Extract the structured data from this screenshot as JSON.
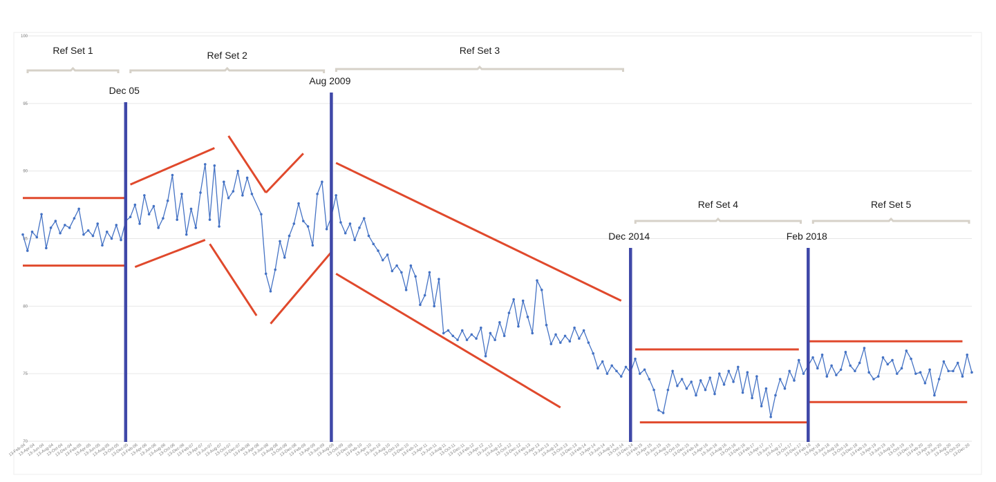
{
  "chart_data": {
    "type": "line",
    "title": "",
    "xlabel": "",
    "ylabel": "",
    "ylim": [
      70,
      100
    ],
    "yticks": [
      "70",
      "75",
      "80",
      "85",
      "90",
      "95",
      "100"
    ],
    "grid": "horizontal",
    "colors": {
      "series": "#4472c4",
      "regime_lines": "#3f48a8",
      "trend_lines": "#e0492c",
      "brackets": "#d6d1c8",
      "grid": "#e6e6e6"
    },
    "x_tick_labels": [
      "13-Feb-04",
      "13-Apr-04",
      "13-Jun-04",
      "13-Aug-04",
      "13-Oct-04",
      "13-Dec-04",
      "13-Feb-05",
      "13-Apr-05",
      "13-Jun-05",
      "13-Aug-05",
      "13-Oct-05",
      "13-Dec-05",
      "13-Feb-06",
      "13-Apr-06",
      "13-Jun-06",
      "13-Aug-06",
      "13-Oct-06",
      "13-Dec-06",
      "13-Feb-07",
      "13-Apr-07",
      "13-Jun-07",
      "13-Aug-07",
      "13-Oct-07",
      "13-Dec-07",
      "13-Feb-08",
      "13-Apr-08",
      "13-Jun-08",
      "13-Aug-08",
      "13-Oct-08",
      "13-Dec-08",
      "13-Feb-09",
      "13-Apr-09",
      "13-Jun-09",
      "13-Aug-09",
      "13-Oct-09",
      "13-Dec-09",
      "13-Feb-10",
      "13-Apr-10",
      "13-Jun-10",
      "13-Aug-10",
      "13-Oct-10",
      "13-Dec-10",
      "13-Feb-11",
      "13-Apr-11",
      "13-Jun-11",
      "13-Aug-11",
      "13-Oct-11",
      "13-Dec-11",
      "13-Feb-12",
      "13-Apr-12",
      "13-Jun-12",
      "13-Aug-12",
      "13-Oct-12",
      "13-Dec-12",
      "13-Feb-13",
      "13-Apr-13",
      "13-Jun-13",
      "13-Aug-13",
      "13-Oct-13",
      "13-Dec-13",
      "13-Feb-14",
      "13-Apr-14",
      "13-Jun-14",
      "13-Aug-14",
      "13-Oct-14",
      "13-Dec-14",
      "13-Feb-15",
      "13-Apr-15",
      "13-Jun-15",
      "13-Aug-15",
      "13-Oct-15",
      "13-Dec-15",
      "13-Feb-16",
      "13-Apr-16",
      "13-Jun-16",
      "13-Aug-16",
      "13-Oct-16",
      "13-Dec-16",
      "13-Feb-17",
      "13-Apr-17",
      "13-Jun-17",
      "13-Aug-17",
      "13-Oct-17",
      "13-Dec-17",
      "13-Feb-18",
      "13-Apr-18",
      "13-Jun-18",
      "13-Aug-18",
      "13-Oct-18",
      "13-Dec-18",
      "13-Feb-19",
      "13-Apr-19",
      "13-Jun-19",
      "13-Aug-19",
      "13-Oct-19",
      "13-Dec-19",
      "13-Feb-20",
      "13-Apr-20",
      "13-Jun-20",
      "13-Aug-20",
      "13-Oct-20",
      "13-Dec-20"
    ],
    "series": [
      {
        "values": [
          [
            "2004-02",
            85.3
          ],
          [
            "2004-03",
            84.1
          ],
          [
            "2004-04",
            85.5
          ],
          [
            "2004-05",
            85.1
          ],
          [
            "2004-06",
            86.8
          ],
          [
            "2004-07",
            84.3
          ],
          [
            "2004-08",
            85.8
          ],
          [
            "2004-09",
            86.3
          ],
          [
            "2004-10",
            85.4
          ],
          [
            "2004-11",
            86.0
          ],
          [
            "2004-12",
            85.8
          ],
          [
            "2005-01",
            86.5
          ],
          [
            "2005-02",
            87.2
          ],
          [
            "2005-03",
            85.3
          ],
          [
            "2005-04",
            85.6
          ],
          [
            "2005-05",
            85.2
          ],
          [
            "2005-06",
            86.1
          ],
          [
            "2005-07",
            84.5
          ],
          [
            "2005-08",
            85.5
          ],
          [
            "2005-09",
            85.0
          ],
          [
            "2005-10",
            86.0
          ],
          [
            "2005-11",
            84.9
          ],
          [
            "2005-12",
            86.3
          ],
          [
            "2006-01",
            86.6
          ],
          [
            "2006-02",
            87.5
          ],
          [
            "2006-03",
            86.1
          ],
          [
            "2006-04",
            88.2
          ],
          [
            "2006-05",
            86.8
          ],
          [
            "2006-06",
            87.4
          ],
          [
            "2006-07",
            85.8
          ],
          [
            "2006-08",
            86.5
          ],
          [
            "2006-09",
            87.8
          ],
          [
            "2006-10",
            89.7
          ],
          [
            "2006-11",
            86.4
          ],
          [
            "2006-12",
            88.3
          ],
          [
            "2007-01",
            85.3
          ],
          [
            "2007-02",
            87.2
          ],
          [
            "2007-03",
            85.8
          ],
          [
            "2007-04",
            88.4
          ],
          [
            "2007-05",
            90.5
          ],
          [
            "2007-06",
            86.4
          ],
          [
            "2007-07",
            90.4
          ],
          [
            "2007-08",
            85.9
          ],
          [
            "2007-09",
            89.2
          ],
          [
            "2007-10",
            88.0
          ],
          [
            "2007-11",
            88.5
          ],
          [
            "2007-12",
            90.0
          ],
          [
            "2008-01",
            88.2
          ],
          [
            "2008-02",
            89.5
          ],
          [
            "2008-03",
            88.3
          ],
          [
            "2008-05",
            86.8
          ],
          [
            "2008-06",
            82.4
          ],
          [
            "2008-07",
            81.1
          ],
          [
            "2008-08",
            82.7
          ],
          [
            "2008-09",
            84.8
          ],
          [
            "2008-10",
            83.6
          ],
          [
            "2008-11",
            85.2
          ],
          [
            "2008-12",
            86.1
          ],
          [
            "2009-01",
            87.6
          ],
          [
            "2009-02",
            86.3
          ],
          [
            "2009-03",
            85.9
          ],
          [
            "2009-04",
            84.5
          ],
          [
            "2009-05",
            88.3
          ],
          [
            "2009-06",
            89.2
          ],
          [
            "2009-07",
            85.7
          ],
          [
            "2009-08",
            86.6
          ],
          [
            "2009-09",
            88.2
          ],
          [
            "2009-10",
            86.2
          ],
          [
            "2009-11",
            85.4
          ],
          [
            "2009-12",
            86.1
          ],
          [
            "2010-01",
            84.9
          ],
          [
            "2010-02",
            85.8
          ],
          [
            "2010-03",
            86.5
          ],
          [
            "2010-04",
            85.2
          ],
          [
            "2010-05",
            84.6
          ],
          [
            "2010-06",
            84.1
          ],
          [
            "2010-07",
            83.4
          ],
          [
            "2010-08",
            83.8
          ],
          [
            "2010-09",
            82.6
          ],
          [
            "2010-10",
            83.0
          ],
          [
            "2010-11",
            82.5
          ],
          [
            "2010-12",
            81.2
          ],
          [
            "2011-01",
            83.0
          ],
          [
            "2011-02",
            82.2
          ],
          [
            "2011-03",
            80.1
          ],
          [
            "2011-04",
            80.8
          ],
          [
            "2011-05",
            82.5
          ],
          [
            "2011-06",
            80.0
          ],
          [
            "2011-07",
            82.0
          ],
          [
            "2011-08",
            78.0
          ],
          [
            "2011-09",
            78.2
          ],
          [
            "2011-10",
            77.8
          ],
          [
            "2011-11",
            77.5
          ],
          [
            "2011-12",
            78.2
          ],
          [
            "2012-01",
            77.5
          ],
          [
            "2012-02",
            77.9
          ],
          [
            "2012-03",
            77.6
          ],
          [
            "2012-04",
            78.4
          ],
          [
            "2012-05",
            76.3
          ],
          [
            "2012-06",
            78.0
          ],
          [
            "2012-07",
            77.5
          ],
          [
            "2012-08",
            78.8
          ],
          [
            "2012-09",
            77.8
          ],
          [
            "2012-10",
            79.5
          ],
          [
            "2012-11",
            80.5
          ],
          [
            "2012-12",
            78.5
          ],
          [
            "2013-01",
            80.4
          ],
          [
            "2013-02",
            79.2
          ],
          [
            "2013-03",
            78.0
          ],
          [
            "2013-04",
            81.9
          ],
          [
            "2013-05",
            81.2
          ],
          [
            "2013-06",
            78.6
          ],
          [
            "2013-07",
            77.2
          ],
          [
            "2013-08",
            77.9
          ],
          [
            "2013-09",
            77.3
          ],
          [
            "2013-10",
            77.8
          ],
          [
            "2013-11",
            77.4
          ],
          [
            "2013-12",
            78.4
          ],
          [
            "2014-01",
            77.6
          ],
          [
            "2014-02",
            78.2
          ],
          [
            "2014-03",
            77.3
          ],
          [
            "2014-04",
            76.5
          ],
          [
            "2014-05",
            75.4
          ],
          [
            "2014-06",
            75.9
          ],
          [
            "2014-07",
            75.0
          ],
          [
            "2014-08",
            75.6
          ],
          [
            "2014-09",
            75.2
          ],
          [
            "2014-10",
            74.8
          ],
          [
            "2014-11",
            75.5
          ],
          [
            "2014-12",
            75.1
          ],
          [
            "2015-01",
            76.1
          ],
          [
            "2015-02",
            75.0
          ],
          [
            "2015-03",
            75.3
          ],
          [
            "2015-04",
            74.6
          ],
          [
            "2015-05",
            73.8
          ],
          [
            "2015-06",
            72.3
          ],
          [
            "2015-07",
            72.1
          ],
          [
            "2015-08",
            73.8
          ],
          [
            "2015-09",
            75.2
          ],
          [
            "2015-10",
            74.1
          ],
          [
            "2015-11",
            74.6
          ],
          [
            "2015-12",
            73.9
          ],
          [
            "2016-01",
            74.4
          ],
          [
            "2016-02",
            73.4
          ],
          [
            "2016-03",
            74.5
          ],
          [
            "2016-04",
            73.8
          ],
          [
            "2016-05",
            74.7
          ],
          [
            "2016-06",
            73.5
          ],
          [
            "2016-07",
            75.0
          ],
          [
            "2016-08",
            74.2
          ],
          [
            "2016-09",
            75.2
          ],
          [
            "2016-10",
            74.4
          ],
          [
            "2016-11",
            75.5
          ],
          [
            "2016-12",
            73.6
          ],
          [
            "2017-01",
            75.1
          ],
          [
            "2017-02",
            73.2
          ],
          [
            "2017-03",
            74.8
          ],
          [
            "2017-04",
            72.6
          ],
          [
            "2017-05",
            73.9
          ],
          [
            "2017-06",
            71.8
          ],
          [
            "2017-07",
            73.4
          ],
          [
            "2017-08",
            74.6
          ],
          [
            "2017-09",
            73.9
          ],
          [
            "2017-10",
            75.2
          ],
          [
            "2017-11",
            74.5
          ],
          [
            "2017-12",
            76.0
          ],
          [
            "2018-01",
            75.0
          ],
          [
            "2018-02",
            75.6
          ],
          [
            "2018-03",
            76.2
          ],
          [
            "2018-04",
            75.4
          ],
          [
            "2018-05",
            76.4
          ],
          [
            "2018-06",
            74.8
          ],
          [
            "2018-07",
            75.6
          ],
          [
            "2018-08",
            74.9
          ],
          [
            "2018-09",
            75.3
          ],
          [
            "2018-10",
            76.6
          ],
          [
            "2018-11",
            75.6
          ],
          [
            "2018-12",
            75.2
          ],
          [
            "2019-01",
            75.8
          ],
          [
            "2019-02",
            76.9
          ],
          [
            "2019-03",
            75.1
          ],
          [
            "2019-04",
            74.6
          ],
          [
            "2019-05",
            74.8
          ],
          [
            "2019-06",
            76.2
          ],
          [
            "2019-07",
            75.7
          ],
          [
            "2019-08",
            76.0
          ],
          [
            "2019-09",
            75.0
          ],
          [
            "2019-10",
            75.4
          ],
          [
            "2019-11",
            76.7
          ],
          [
            "2019-12",
            76.1
          ],
          [
            "2020-01",
            75.0
          ],
          [
            "2020-02",
            75.1
          ],
          [
            "2020-03",
            74.3
          ],
          [
            "2020-04",
            75.3
          ],
          [
            "2020-05",
            73.4
          ],
          [
            "2020-06",
            74.6
          ],
          [
            "2020-07",
            75.9
          ],
          [
            "2020-08",
            75.2
          ],
          [
            "2020-09",
            75.2
          ],
          [
            "2020-10",
            75.8
          ],
          [
            "2020-11",
            74.8
          ],
          [
            "2020-12",
            76.4
          ],
          [
            "2021-01",
            75.1
          ]
        ]
      }
    ],
    "annotations": {
      "events": [
        {
          "label": "Dec 05",
          "date": "2005-12"
        },
        {
          "label": "Aug 2009",
          "date": "2009-08"
        },
        {
          "label": "Dec 2014",
          "date": "2014-12"
        },
        {
          "label": "Feb 2018",
          "date": "2018-02"
        }
      ],
      "ref_sets": [
        {
          "label": "Ref Set 1",
          "from": "2004-02",
          "to": "2005-11",
          "level": "top"
        },
        {
          "label": "Ref Set 2",
          "from": "2005-12",
          "to": "2009-07",
          "level": "middle"
        },
        {
          "label": "Ref Set 3",
          "from": "2009-08",
          "to": "2014-11",
          "level": "high"
        },
        {
          "label": "Ref Set 4",
          "from": "2014-12",
          "to": "2018-01",
          "level": "low"
        },
        {
          "label": "Ref Set 5",
          "from": "2018-02",
          "to": "2021-01",
          "level": "low"
        }
      ],
      "trend_lines": [
        {
          "from": [
            "2004-02",
            88.0
          ],
          "to": [
            "2005-12",
            88.0
          ]
        },
        {
          "from": [
            "2004-02",
            83.0
          ],
          "to": [
            "2005-12",
            83.0
          ]
        },
        {
          "from": [
            "2006-01",
            89.0
          ],
          "to": [
            "2007-07",
            91.7
          ]
        },
        {
          "from": [
            "2006-02",
            82.9
          ],
          "to": [
            "2007-05",
            84.9
          ]
        },
        {
          "from": [
            "2007-10",
            92.6
          ],
          "to": [
            "2008-06",
            88.4
          ]
        },
        {
          "from": [
            "2008-06",
            88.4
          ],
          "to": [
            "2009-02",
            91.3
          ]
        },
        {
          "from": [
            "2007-06",
            84.6
          ],
          "to": [
            "2008-04",
            79.3
          ]
        },
        {
          "from": [
            "2008-07",
            78.7
          ],
          "to": [
            "2009-08",
            84.0
          ]
        },
        {
          "from": [
            "2009-09",
            90.6
          ],
          "to": [
            "2014-10",
            80.4
          ]
        },
        {
          "from": [
            "2009-09",
            82.4
          ],
          "to": [
            "2013-09",
            72.5
          ]
        },
        {
          "from": [
            "2015-01",
            76.8
          ],
          "to": [
            "2017-12",
            76.8
          ]
        },
        {
          "from": [
            "2015-02",
            71.4
          ],
          "to": [
            "2018-02",
            71.4
          ]
        },
        {
          "from": [
            "2018-02",
            77.4
          ],
          "to": [
            "2020-11",
            77.4
          ]
        },
        {
          "from": [
            "2018-02",
            72.9
          ],
          "to": [
            "2020-12",
            72.9
          ]
        }
      ]
    }
  }
}
